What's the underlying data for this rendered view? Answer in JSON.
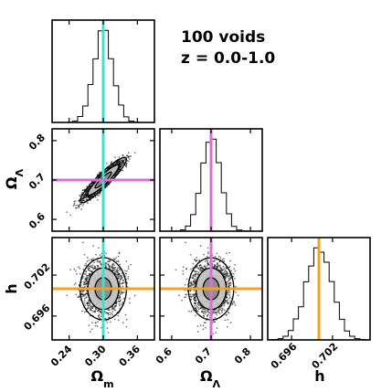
{
  "chart_data": {
    "type": "scatter",
    "subtype": "corner-plot",
    "annotations": [
      "100 voids",
      "z = 0.0-1.0"
    ],
    "parameters": [
      {
        "key": "om",
        "label_main": "Ω",
        "label_sub": "m",
        "true_value": 0.3,
        "truth_color": "#40E0D0",
        "range": [
          0.21,
          0.39
        ],
        "ticks": [
          0.24,
          0.3,
          0.36
        ],
        "tick_labels": [
          "0.24",
          "0.30",
          "0.36"
        ],
        "posterior": {
          "mean": 0.3,
          "sigma": 0.017
        }
      },
      {
        "key": "ol",
        "label_main": "Ω",
        "label_sub": "Λ",
        "true_value": 0.7,
        "truth_color": "#DA70D6",
        "range": [
          0.57,
          0.83
        ],
        "ticks": [
          0.6,
          0.7,
          0.8
        ],
        "tick_labels": [
          "0.6",
          "0.7",
          "0.8"
        ],
        "posterior": {
          "mean": 0.7,
          "sigma": 0.024
        }
      },
      {
        "key": "h",
        "label_main": "h",
        "label_sub": "",
        "true_value": 0.7,
        "truth_color": "#F5A020",
        "range": [
          0.6925,
          0.7075
        ],
        "ticks": [
          0.696,
          0.702
        ],
        "tick_labels": [
          "0.696",
          "0.702"
        ],
        "posterior": {
          "mean": 0.7,
          "sigma": 0.0019
        }
      }
    ],
    "correlations": {
      "om_ol": 0.92,
      "om_h": 0.0,
      "ol_h": 0.0
    },
    "histogram_bins": 20,
    "contour_levels": [
      "1σ",
      "2σ",
      "3σ"
    ],
    "samples_shown": 2000
  }
}
